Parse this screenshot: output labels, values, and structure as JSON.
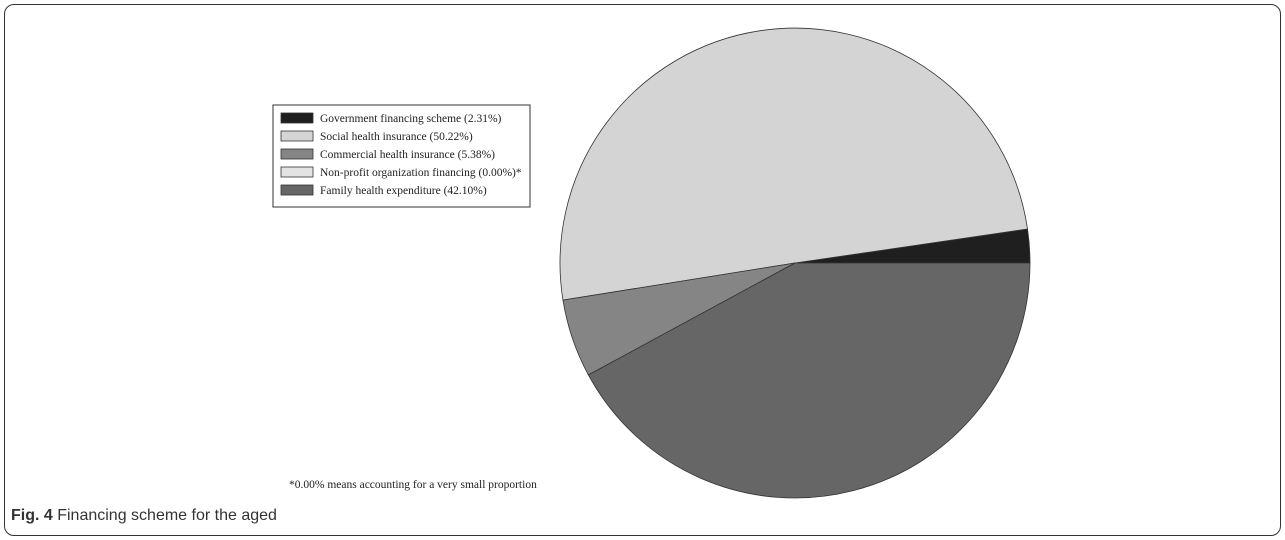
{
  "caption": {
    "label": "Fig. 4",
    "text": " Financing scheme for the aged"
  },
  "chart_data": {
    "type": "pie",
    "title": "",
    "categories": [
      "Government financing scheme (2.31%)",
      "Social health insurance (50.22%)",
      "Commercial health insurance (5.38%)",
      "Non-profit organization financing (0.00%)*",
      "Family health expenditure (42.10%)"
    ],
    "values": [
      2.31,
      50.22,
      5.38,
      0.0,
      42.1
    ],
    "colors": [
      "#1f1f1f",
      "#d4d4d4",
      "#858585",
      "#e3e3e3",
      "#666666"
    ],
    "start_angle": "3 o'clock, counter-clockwise",
    "legend_placement": "top-left",
    "footnote": "*0.00% means accounting for a very small proportion"
  }
}
